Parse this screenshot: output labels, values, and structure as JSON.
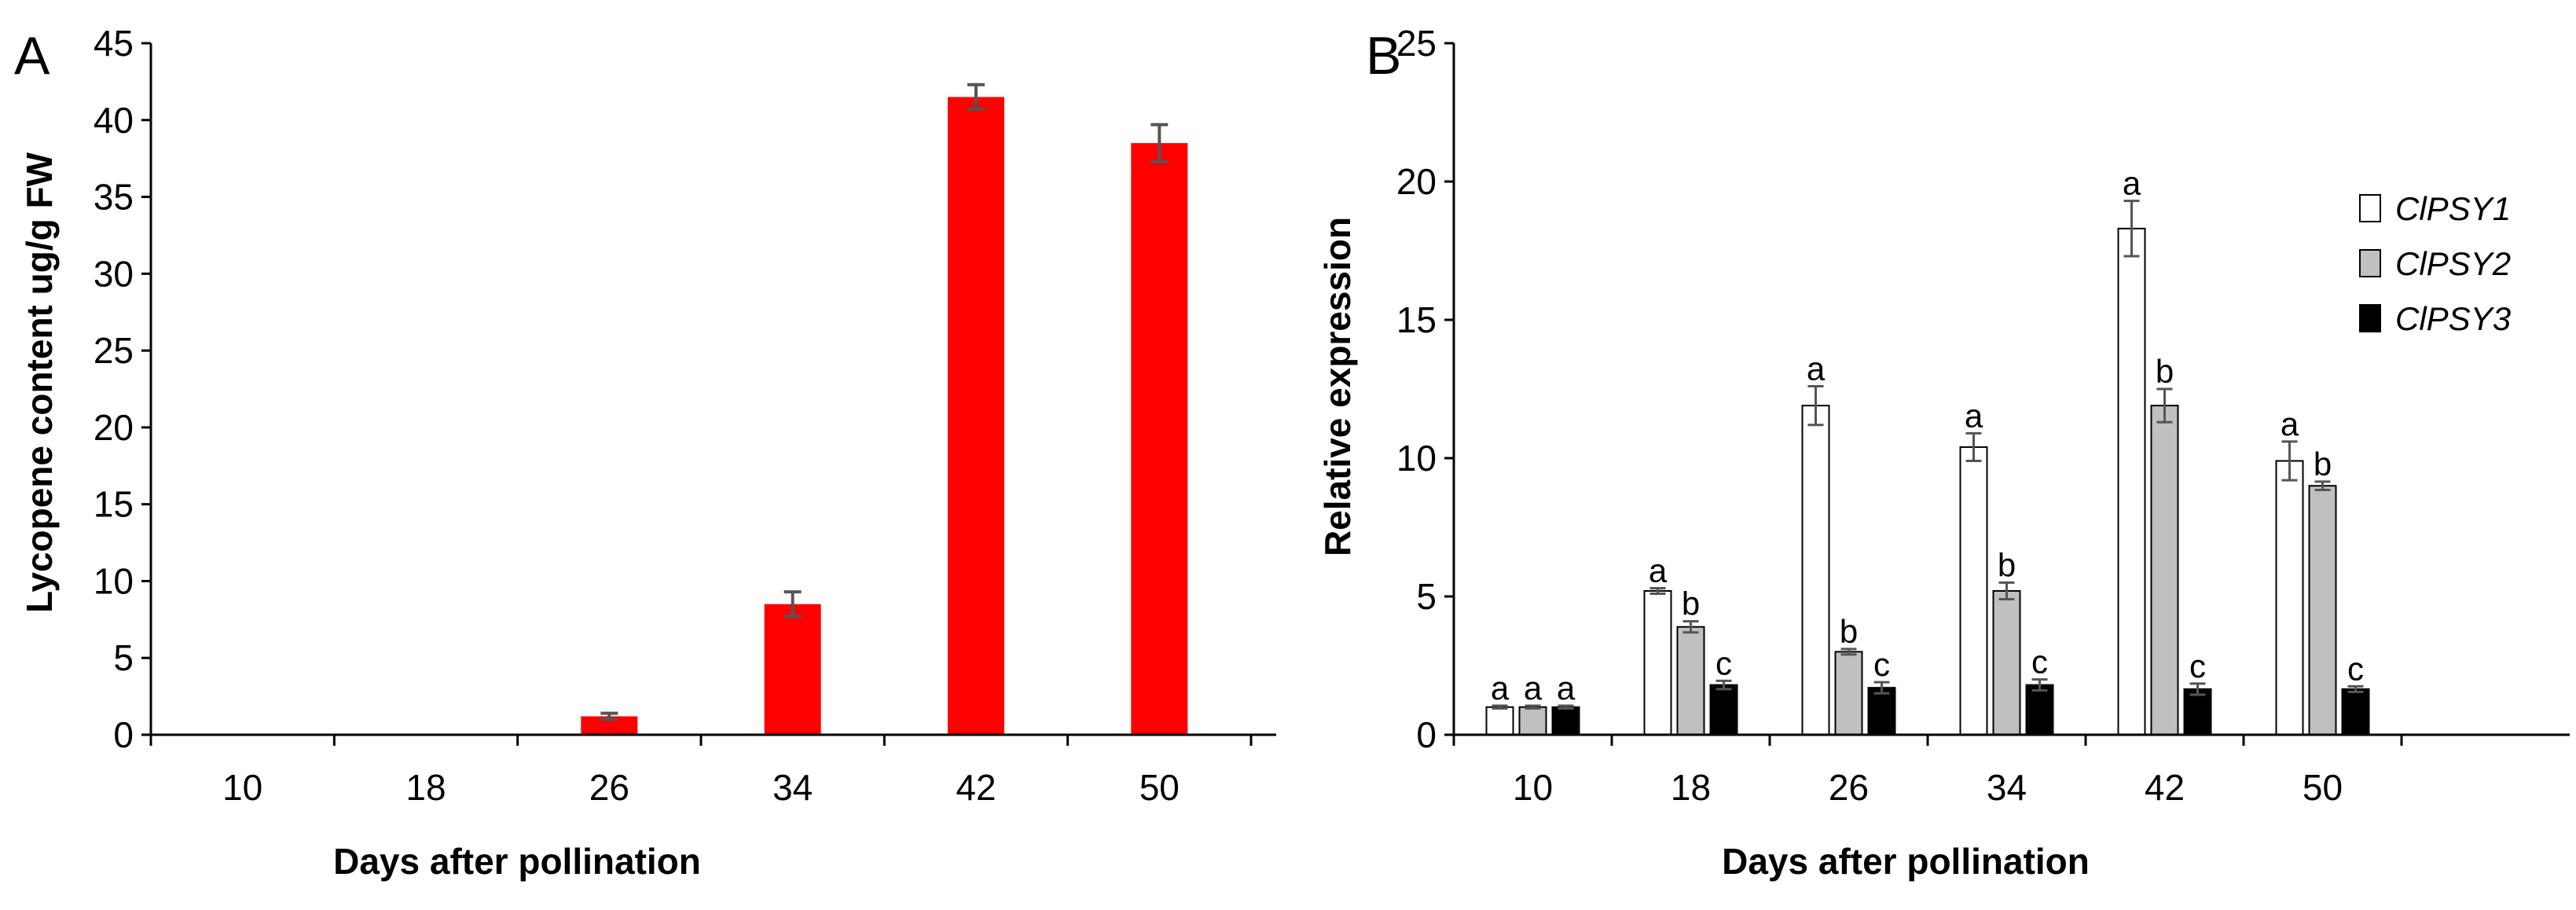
{
  "panels": {
    "a": {
      "letter": "A"
    },
    "b": {
      "letter": "B"
    }
  },
  "chart_data": [
    {
      "type": "bar",
      "panel": "A",
      "title": "",
      "xlabel": "Days after pollination",
      "ylabel": "Lycopene content ug/g FW",
      "categories": [
        "10",
        "18",
        "26",
        "34",
        "42",
        "50"
      ],
      "values": [
        0,
        0,
        1.2,
        8.5,
        41.5,
        38.5
      ],
      "errors": [
        0,
        0,
        0.2,
        0.8,
        0.8,
        1.2
      ],
      "ylim": [
        0,
        45
      ],
      "yticks": [
        "0",
        "5",
        "10",
        "15",
        "20",
        "25",
        "30",
        "35",
        "40",
        "45"
      ],
      "bar_color": "#ff0000",
      "error_color": "#555555",
      "grid": false,
      "legend": "none"
    },
    {
      "type": "bar",
      "panel": "B",
      "title": "",
      "xlabel": "Days after pollination",
      "ylabel": "Relative expression",
      "categories": [
        "10",
        "18",
        "26",
        "34",
        "42",
        "50"
      ],
      "ylim": [
        0,
        25
      ],
      "yticks": [
        "0",
        "5",
        "10",
        "15",
        "20",
        "25"
      ],
      "grid": false,
      "legend": "top-right",
      "series": [
        {
          "name": "ClPSY1",
          "color": "#ffffff",
          "values": [
            1.0,
            5.2,
            11.9,
            10.4,
            18.3,
            9.9
          ],
          "errors": [
            0.05,
            0.1,
            0.7,
            0.5,
            1.0,
            0.7
          ],
          "labels": [
            "a",
            "a",
            "a",
            "a",
            "a",
            "a"
          ]
        },
        {
          "name": "ClPSY2",
          "color": "#c0c0c0",
          "values": [
            1.0,
            3.9,
            3.0,
            5.2,
            11.9,
            9.0
          ],
          "errors": [
            0.05,
            0.2,
            0.1,
            0.3,
            0.6,
            0.15
          ],
          "labels": [
            "a",
            "b",
            "b",
            "b",
            "b",
            "b"
          ]
        },
        {
          "name": "ClPSY3",
          "color": "#000000",
          "values": [
            1.0,
            1.8,
            1.7,
            1.8,
            1.65,
            1.65
          ],
          "errors": [
            0.05,
            0.15,
            0.2,
            0.2,
            0.2,
            0.1
          ],
          "labels": [
            "a",
            "c",
            "c",
            "c",
            "c",
            "c"
          ]
        }
      ]
    }
  ]
}
